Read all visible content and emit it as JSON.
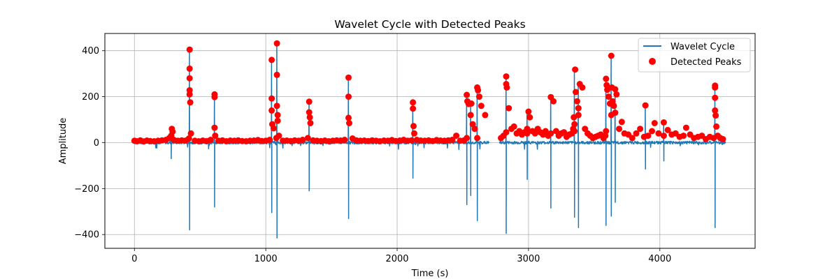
{
  "chart_data": {
    "type": "line",
    "title": "Wavelet Cycle with Detected Peaks",
    "xlabel": "Time (s)",
    "ylabel": "Amplitude",
    "xlim": [
      -225,
      4725
    ],
    "ylim": [
      -460,
      475
    ],
    "xticks": [
      0,
      1000,
      2000,
      3000,
      4000
    ],
    "xtick_labels": [
      "0",
      "1000",
      "2000",
      "3000",
      "4000"
    ],
    "yticks": [
      -400,
      -200,
      0,
      200,
      400
    ],
    "ytick_labels": [
      "−400",
      "−200",
      "0",
      "200",
      "400"
    ],
    "grid": true,
    "legend_position": "top-right",
    "series": [
      {
        "name": "Wavelet Cycle",
        "kind": "line",
        "color": "#1f77b4",
        "x_range": [
          0,
          4500
        ],
        "noise_amplitude": 6,
        "gap": [
          2700,
          2780
        ],
        "spikes": [
          {
            "x": 280,
            "pos": 60,
            "neg": -70
          },
          {
            "x": 420,
            "pos": 405,
            "neg": -380
          },
          {
            "x": 610,
            "pos": 210,
            "neg": -280
          },
          {
            "x": 1045,
            "pos": 360,
            "neg": -305
          },
          {
            "x": 1085,
            "pos": 432,
            "neg": -415
          },
          {
            "x": 1330,
            "pos": 178,
            "neg": -210
          },
          {
            "x": 1630,
            "pos": 283,
            "neg": -330
          },
          {
            "x": 2120,
            "pos": 175,
            "neg": -155
          },
          {
            "x": 2530,
            "pos": 210,
            "neg": -270
          },
          {
            "x": 2560,
            "pos": 170,
            "neg": -230
          },
          {
            "x": 2610,
            "pos": 240,
            "neg": -340
          },
          {
            "x": 2830,
            "pos": 288,
            "neg": -395
          },
          {
            "x": 2990,
            "pos": 135,
            "neg": -160
          },
          {
            "x": 3170,
            "pos": 198,
            "neg": -285
          },
          {
            "x": 3350,
            "pos": 318,
            "neg": -325
          },
          {
            "x": 3380,
            "pos": 255,
            "neg": -370
          },
          {
            "x": 3590,
            "pos": 278,
            "neg": -360
          },
          {
            "x": 3630,
            "pos": 378,
            "neg": -320
          },
          {
            "x": 3660,
            "pos": 232,
            "neg": -260
          },
          {
            "x": 3890,
            "pos": 162,
            "neg": -115
          },
          {
            "x": 4030,
            "pos": 88,
            "neg": -80
          },
          {
            "x": 4420,
            "pos": 248,
            "neg": -370
          }
        ]
      },
      {
        "name": "Detected Peaks",
        "kind": "scatter",
        "color": "#ff0000",
        "x": [
          0,
          20,
          45,
          70,
          95,
          120,
          150,
          180,
          210,
          240,
          265,
          280,
          285,
          290,
          300,
          330,
          360,
          390,
          415,
          420,
          420,
          420,
          420,
          420,
          425,
          430,
          460,
          490,
          520,
          550,
          580,
          610,
          610,
          610,
          615,
          640,
          670,
          700,
          730,
          760,
          790,
          820,
          850,
          880,
          910,
          940,
          970,
          1000,
          1030,
          1045,
          1045,
          1045,
          1050,
          1060,
          1080,
          1085,
          1085,
          1085,
          1090,
          1090,
          1100,
          1130,
          1160,
          1190,
          1220,
          1250,
          1280,
          1320,
          1330,
          1330,
          1335,
          1340,
          1360,
          1390,
          1420,
          1450,
          1480,
          1510,
          1540,
          1570,
          1600,
          1630,
          1630,
          1630,
          1635,
          1660,
          1690,
          1720,
          1750,
          1780,
          1810,
          1840,
          1870,
          1900,
          1930,
          1960,
          1990,
          2020,
          2050,
          2080,
          2110,
          2120,
          2120,
          2125,
          2130,
          2150,
          2180,
          2210,
          2240,
          2270,
          2300,
          2330,
          2360,
          2390,
          2420,
          2450,
          2480,
          2510,
          2530,
          2530,
          2535,
          2545,
          2560,
          2565,
          2575,
          2590,
          2610,
          2610,
          2615,
          2625,
          2640,
          2670,
          2790,
          2810,
          2830,
          2830,
          2830,
          2835,
          2850,
          2870,
          2890,
          2910,
          2930,
          2950,
          2970,
          2990,
          2990,
          3000,
          3010,
          3030,
          3050,
          3070,
          3090,
          3110,
          3130,
          3150,
          3170,
          3170,
          3190,
          3210,
          3230,
          3250,
          3270,
          3290,
          3310,
          3330,
          3340,
          3345,
          3350,
          3350,
          3355,
          3360,
          3370,
          3380,
          3380,
          3390,
          3410,
          3430,
          3450,
          3470,
          3490,
          3510,
          3530,
          3550,
          3570,
          3585,
          3590,
          3590,
          3595,
          3600,
          3610,
          3620,
          3630,
          3630,
          3635,
          3640,
          3650,
          3660,
          3660,
          3670,
          3690,
          3710,
          3730,
          3760,
          3790,
          3820,
          3850,
          3880,
          3890,
          3910,
          3940,
          3960,
          3990,
          4030,
          4030,
          4060,
          4090,
          4120,
          4150,
          4180,
          4200,
          4230,
          4260,
          4290,
          4320,
          4350,
          4380,
          4410,
          4420,
          4420,
          4420,
          4420,
          4425,
          4430,
          4440,
          4460,
          4480
        ],
        "y": [
          8,
          6,
          10,
          5,
          9,
          7,
          6,
          8,
          10,
          12,
          20,
          30,
          60,
          48,
          12,
          8,
          10,
          9,
          18,
          405,
          322,
          280,
          228,
          210,
          175,
          40,
          8,
          6,
          9,
          7,
          12,
          210,
          198,
          65,
          30,
          8,
          10,
          6,
          9,
          8,
          10,
          7,
          6,
          8,
          9,
          11,
          7,
          8,
          12,
          360,
          192,
          140,
          80,
          62,
          20,
          432,
          295,
          160,
          120,
          95,
          30,
          8,
          9,
          7,
          10,
          8,
          12,
          20,
          178,
          132,
          110,
          85,
          10,
          8,
          7,
          9,
          6,
          8,
          10,
          9,
          12,
          283,
          200,
          108,
          85,
          18,
          10,
          8,
          9,
          7,
          10,
          8,
          6,
          9,
          8,
          11,
          7,
          9,
          12,
          8,
          10,
          175,
          148,
          72,
          40,
          12,
          9,
          8,
          10,
          7,
          11,
          9,
          8,
          10,
          12,
          30,
          8,
          10,
          20,
          208,
          180,
          168,
          120,
          170,
          80,
          60,
          20,
          240,
          228,
          200,
          160,
          120,
          20,
          30,
          45,
          288,
          255,
          240,
          150,
          60,
          70,
          40,
          50,
          35,
          45,
          40,
          60,
          135,
          110,
          50,
          40,
          60,
          45,
          35,
          50,
          30,
          40,
          198,
          180,
          50,
          30,
          40,
          45,
          25,
          35,
          40,
          60,
          110,
          80,
          50,
          318,
          220,
          180,
          150,
          120,
          255,
          240,
          60,
          40,
          30,
          20,
          25,
          30,
          35,
          20,
          30,
          50,
          278,
          250,
          230,
          200,
          170,
          120,
          378,
          240,
          180,
          160,
          130,
          232,
          210,
          60,
          90,
          40,
          35,
          20,
          40,
          60,
          25,
          162,
          30,
          50,
          85,
          40,
          30,
          88,
          55,
          35,
          40,
          25,
          30,
          65,
          35,
          20,
          25,
          30,
          15,
          25,
          20,
          248,
          240,
          195,
          140,
          118,
          70,
          30,
          20,
          15
        ]
      }
    ]
  }
}
